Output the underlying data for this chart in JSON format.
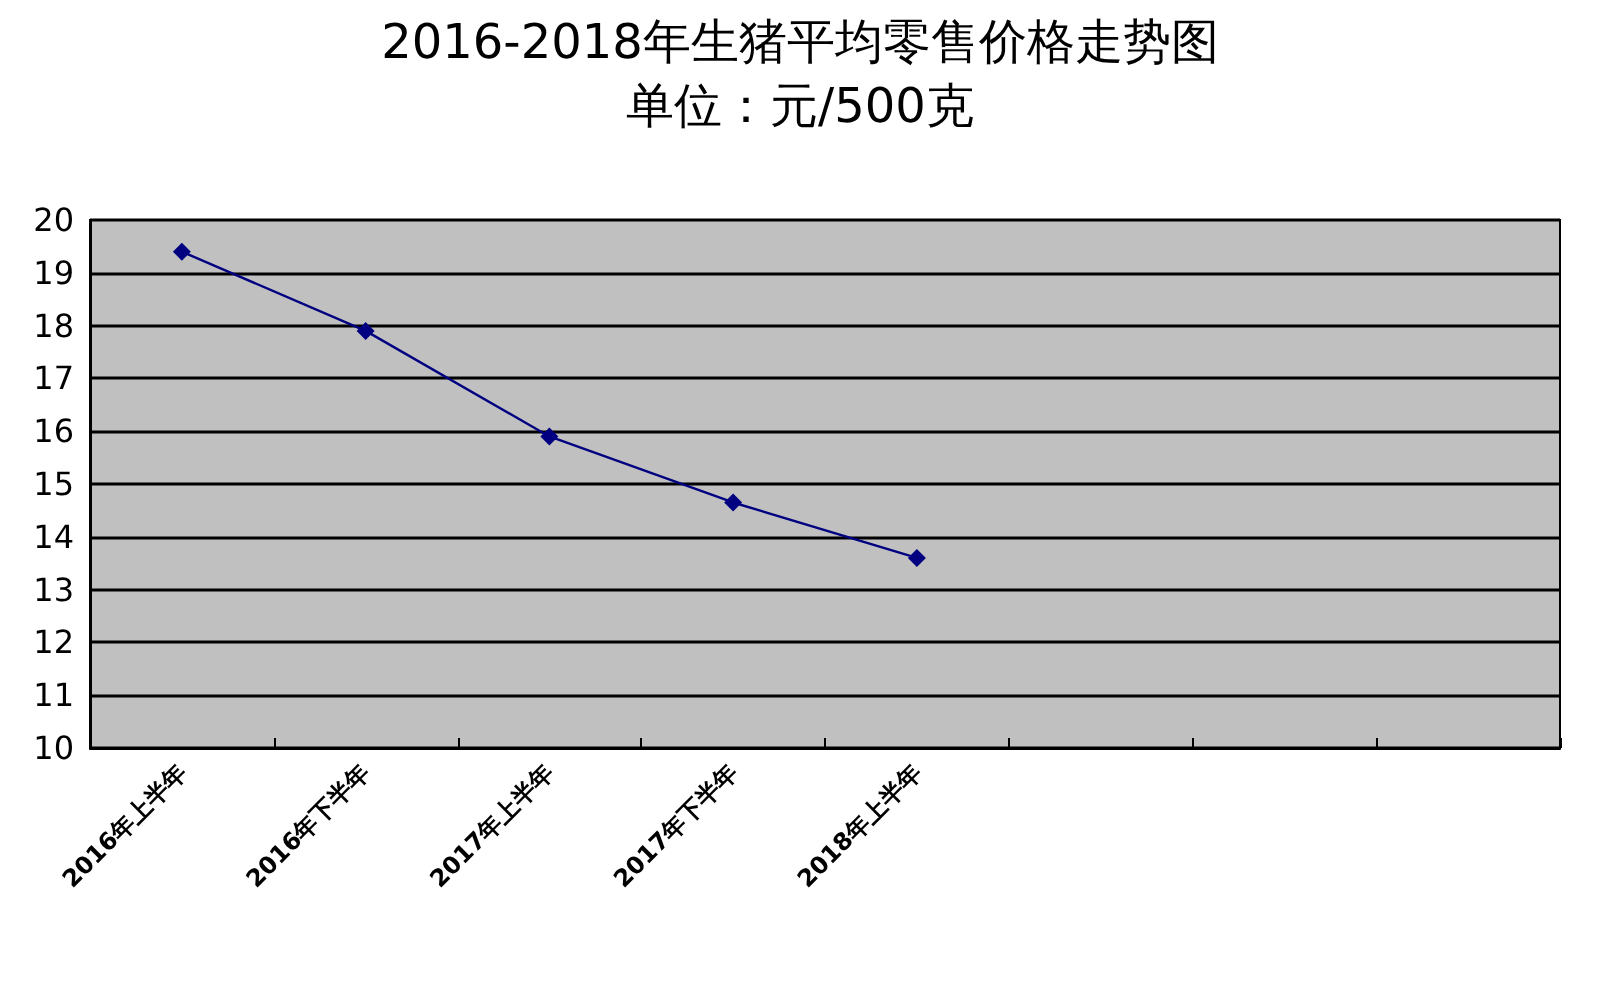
{
  "chart_data": {
    "type": "line",
    "title": "2016-2018年生猪平均零售价格走势图",
    "subtitle": "单位：元/500克",
    "categories": [
      "2016年上半年",
      "2016年下半年",
      "2017年上半年",
      "2017年下半年",
      "2018年上半年",
      null,
      null,
      null
    ],
    "series": [
      {
        "color": "#000080",
        "values": [
          19.4,
          17.9,
          15.9,
          14.65,
          13.6,
          null,
          null,
          null
        ]
      }
    ],
    "ylim": [
      10,
      20
    ],
    "yticks": [
      10,
      11,
      12,
      13,
      14,
      15,
      16,
      17,
      18,
      19,
      20
    ],
    "grid": "y",
    "marker": "diamond",
    "line_style": "solid"
  }
}
